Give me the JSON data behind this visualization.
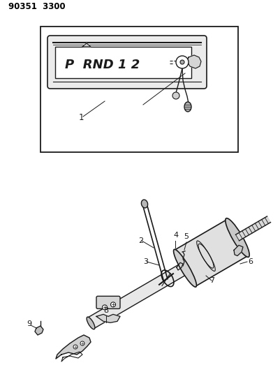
{
  "title_line1": "90351 3300",
  "bg": "#ffffff",
  "fw": 4.01,
  "fh": 5.33,
  "dpi": 100,
  "lc": "#1a1a1a",
  "gray1": "#c8c8c8",
  "gray2": "#e0e0e0",
  "gray3": "#a0a0a0"
}
